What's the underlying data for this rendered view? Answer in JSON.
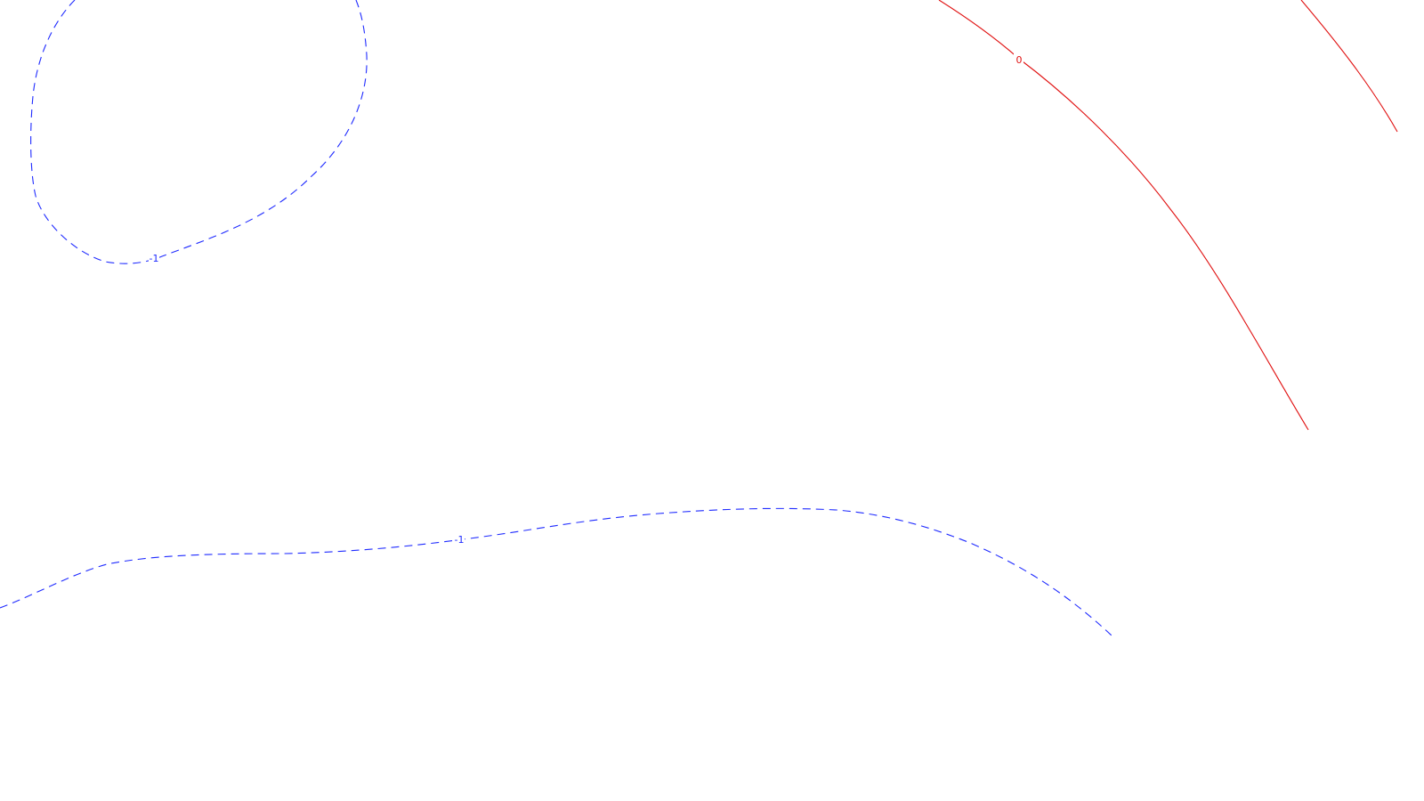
{
  "map": {
    "colors": {
      "negative": "#1f2bff",
      "zero": "#e01010",
      "background": "#ffffff"
    },
    "contours": [
      {
        "id": "loop-top-left",
        "value": "-1",
        "style": "dashed",
        "color_key": "negative"
      },
      {
        "id": "lower-curve",
        "value": "-1",
        "style": "dashed",
        "color_key": "negative"
      },
      {
        "id": "zero-main",
        "value": "0",
        "style": "solid",
        "color_key": "zero"
      },
      {
        "id": "zero-right-edge",
        "value": "",
        "style": "solid",
        "color_key": "zero"
      }
    ]
  }
}
